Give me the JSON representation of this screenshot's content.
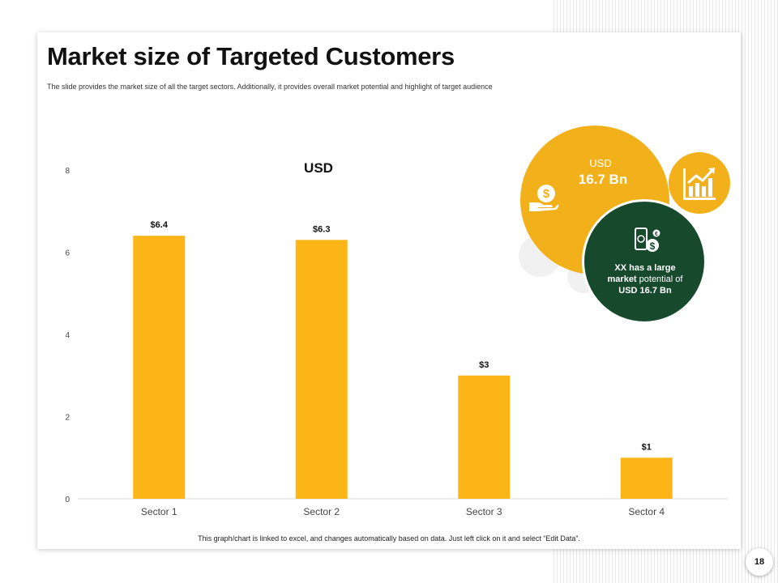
{
  "slide": {
    "title": "Market size of Targeted Customers",
    "subtitle": "The slide provides the market size of all the target sectors. Additionally, it provides overall market potential and highlight of target audience",
    "footer_note": "This graph/chart is linked to excel, and changes automatically based on data. Just left click on it and select “Edit Data”.",
    "page_number": "18"
  },
  "highlight": {
    "usd_label": "USD",
    "usd_value": "16.7 Bn",
    "potential": {
      "part1": "XX has a large",
      "part2": "market",
      "part3": " potential of",
      "part4": "USD 16.7 Bn"
    },
    "icons": [
      "dollar-hand-icon",
      "growth-chart-icon",
      "money-icon"
    ]
  },
  "colors": {
    "bar": "#fbb516",
    "accent_yellow": "#f2b11b",
    "dark_green": "#174a2d",
    "stripe": "#dcefe6"
  },
  "chart_data": {
    "type": "bar",
    "title": "USD",
    "categories": [
      "Sector 1",
      "Sector 2",
      "Sector 3",
      "Sector 4"
    ],
    "values": [
      6.4,
      6.3,
      3,
      1
    ],
    "data_labels": [
      "$6.4",
      "$6.3",
      "$3",
      "$1"
    ],
    "yticks": [
      "0",
      "2",
      "4",
      "6",
      "8"
    ],
    "ylim": [
      0,
      8
    ],
    "grid": false,
    "legend": "none"
  }
}
